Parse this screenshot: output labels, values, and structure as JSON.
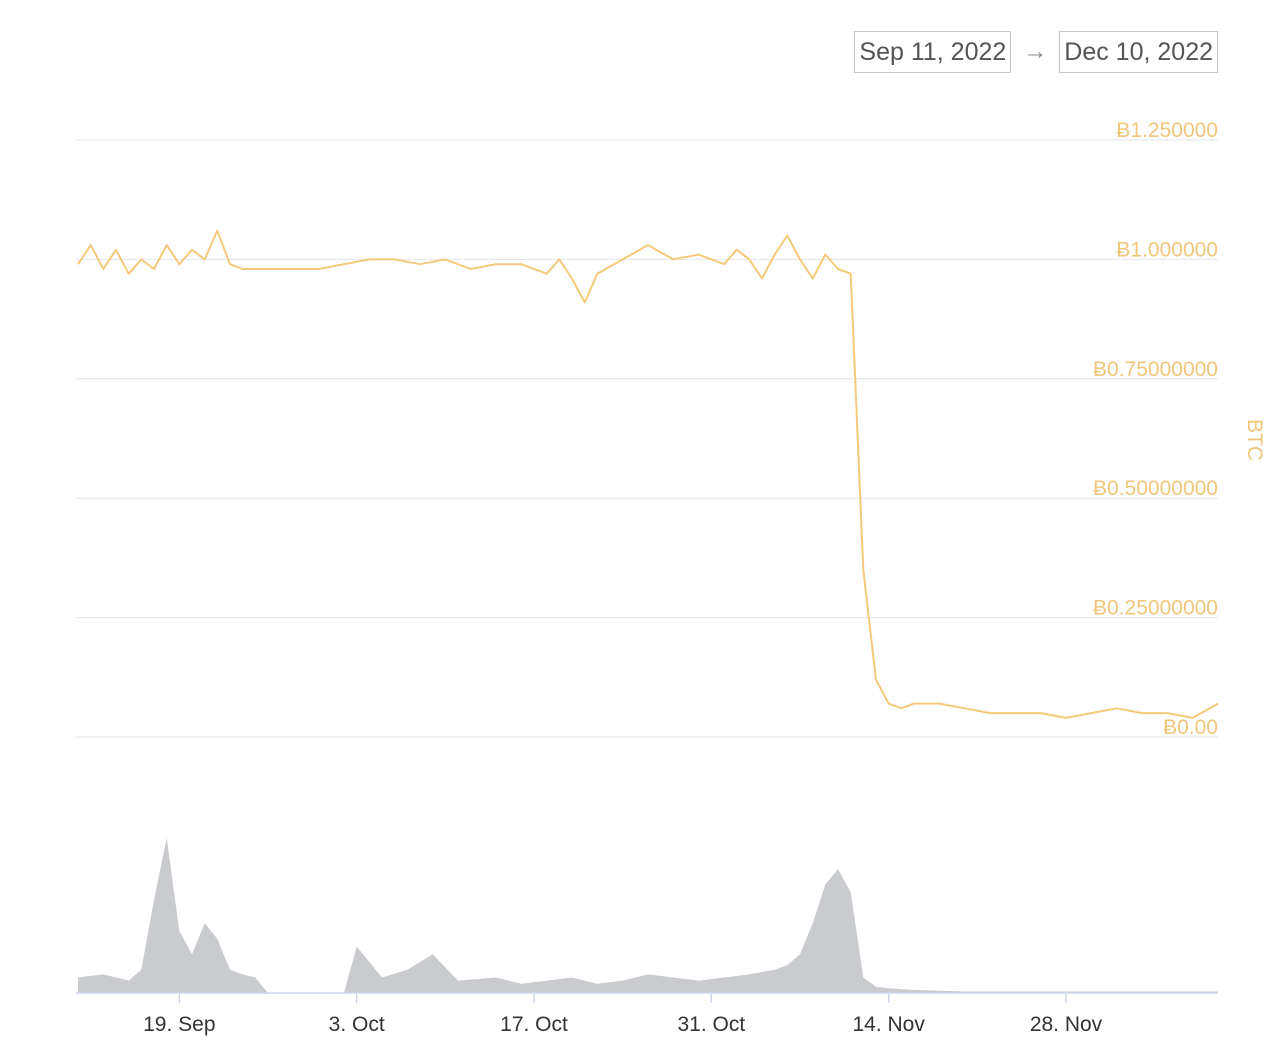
{
  "range_selector": {
    "from": "Sep 11, 2022",
    "arrow": "→",
    "to": "Dec 10, 2022"
  },
  "colors": {
    "price_line": "#f5c97a",
    "axis_label": "#f0c67a",
    "volume_fill": "#c9cbcf",
    "grid": "#e6e6e6"
  },
  "chart_data": [
    {
      "type": "line",
      "title": "",
      "ylabel": "BTC",
      "y_tick_labels": [
        "Ƀ0.00",
        "Ƀ0.25000000",
        "Ƀ0.50000000",
        "Ƀ0.75000000",
        "Ƀ1.000000",
        "Ƀ1.250000"
      ],
      "y_ticks": [
        0,
        0.25,
        0.5,
        0.75,
        1.0,
        1.25
      ],
      "ylim": [
        0,
        1.25
      ],
      "x_tick_labels": [
        "19. Sep",
        "3. Oct",
        "17. Oct",
        "31. Oct",
        "14. Nov",
        "28. Nov"
      ],
      "x_ticks": [
        "2022-09-19",
        "2022-10-03",
        "2022-10-17",
        "2022-10-31",
        "2022-11-14",
        "2022-11-28"
      ],
      "xlim": [
        "2022-09-11",
        "2022-12-10"
      ],
      "series": [
        {
          "x": [
            "2022-09-11",
            "2022-09-12",
            "2022-09-13",
            "2022-09-14",
            "2022-09-15",
            "2022-09-16",
            "2022-09-17",
            "2022-09-18",
            "2022-09-19",
            "2022-09-20",
            "2022-09-21",
            "2022-09-22",
            "2022-09-23",
            "2022-09-24",
            "2022-09-25",
            "2022-09-26",
            "2022-09-28",
            "2022-09-30",
            "2022-10-02",
            "2022-10-04",
            "2022-10-06",
            "2022-10-08",
            "2022-10-10",
            "2022-10-12",
            "2022-10-14",
            "2022-10-16",
            "2022-10-18",
            "2022-10-19",
            "2022-10-20",
            "2022-10-21",
            "2022-10-22",
            "2022-10-24",
            "2022-10-26",
            "2022-10-28",
            "2022-10-30",
            "2022-11-01",
            "2022-11-02",
            "2022-11-03",
            "2022-11-04",
            "2022-11-05",
            "2022-11-06",
            "2022-11-07",
            "2022-11-08",
            "2022-11-09",
            "2022-11-10",
            "2022-11-11",
            "2022-11-12",
            "2022-11-13",
            "2022-11-14",
            "2022-11-15",
            "2022-11-16",
            "2022-11-18",
            "2022-11-20",
            "2022-11-22",
            "2022-11-24",
            "2022-11-26",
            "2022-11-28",
            "2022-11-30",
            "2022-12-02",
            "2022-12-04",
            "2022-12-06",
            "2022-12-08",
            "2022-12-10"
          ],
          "values": [
            0.99,
            1.03,
            0.98,
            1.02,
            0.97,
            1.0,
            0.98,
            1.03,
            0.99,
            1.02,
            1.0,
            1.06,
            0.99,
            0.98,
            0.98,
            0.98,
            0.98,
            0.98,
            0.99,
            1.0,
            1.0,
            0.99,
            1.0,
            0.98,
            0.99,
            0.99,
            0.97,
            1.0,
            0.96,
            0.91,
            0.97,
            1.0,
            1.03,
            1.0,
            1.01,
            0.99,
            1.02,
            1.0,
            0.96,
            1.01,
            1.05,
            1.0,
            0.96,
            1.01,
            0.98,
            0.97,
            0.35,
            0.12,
            0.07,
            0.06,
            0.07,
            0.07,
            0.06,
            0.05,
            0.05,
            0.05,
            0.04,
            0.05,
            0.06,
            0.05,
            0.05,
            0.04,
            0.07
          ]
        }
      ]
    },
    {
      "type": "area",
      "title": "",
      "x": [
        "2022-09-11",
        "2022-09-13",
        "2022-09-15",
        "2022-09-16",
        "2022-09-17",
        "2022-09-18",
        "2022-09-19",
        "2022-09-20",
        "2022-09-21",
        "2022-09-22",
        "2022-09-23",
        "2022-09-24",
        "2022-09-25",
        "2022-09-26",
        "2022-09-28",
        "2022-10-01",
        "2022-10-02",
        "2022-10-03",
        "2022-10-05",
        "2022-10-07",
        "2022-10-08",
        "2022-10-09",
        "2022-10-11",
        "2022-10-14",
        "2022-10-16",
        "2022-10-18",
        "2022-10-20",
        "2022-10-22",
        "2022-10-24",
        "2022-10-26",
        "2022-10-28",
        "2022-10-30",
        "2022-11-01",
        "2022-11-03",
        "2022-11-05",
        "2022-11-06",
        "2022-11-07",
        "2022-11-08",
        "2022-11-09",
        "2022-11-10",
        "2022-11-11",
        "2022-11-12",
        "2022-11-13",
        "2022-11-14",
        "2022-11-16",
        "2022-11-20",
        "2022-11-25",
        "2022-12-01",
        "2022-12-05",
        "2022-12-10"
      ],
      "values": [
        10,
        12,
        8,
        15,
        60,
        100,
        40,
        25,
        45,
        35,
        15,
        12,
        10,
        0,
        0,
        0,
        0,
        30,
        10,
        15,
        20,
        25,
        8,
        10,
        6,
        8,
        10,
        6,
        8,
        12,
        10,
        8,
        10,
        12,
        15,
        18,
        25,
        45,
        70,
        80,
        65,
        10,
        4,
        3,
        2,
        1,
        1,
        1,
        1,
        1
      ]
    }
  ]
}
